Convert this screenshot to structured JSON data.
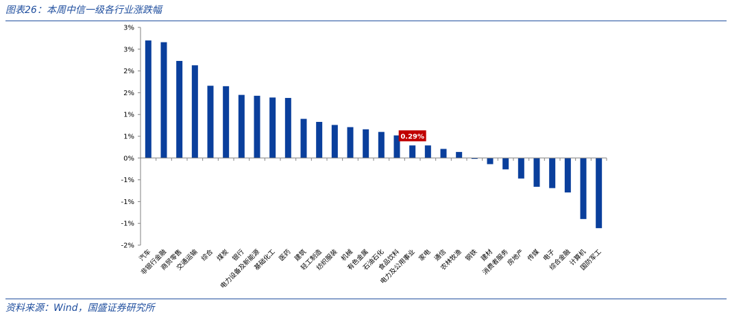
{
  "header": {
    "title": "图表26：本周中信一级各行业涨跌幅"
  },
  "footer": {
    "source": "资料来源：Wind，国盛证券研究所"
  },
  "colors": {
    "bar": "#0a3f9c",
    "accent_text": "#1f4e9e",
    "label_bg": "#c00000"
  },
  "chart_data": {
    "type": "bar",
    "title": "",
    "xlabel": "",
    "ylabel": "",
    "ylim": [
      -2.0,
      3.0
    ],
    "ytick_values": [
      -2.0,
      -1.5,
      -1.0,
      -0.5,
      0.0,
      0.5,
      1.0,
      1.5,
      2.0,
      2.5,
      3.0
    ],
    "ytick_labels": [
      "-2%",
      "-1%",
      "-1%",
      "-1%",
      "0%",
      "1%",
      "1%",
      "2%",
      "2%",
      "3%",
      "3%"
    ],
    "categories": [
      "汽车",
      "非银行金融",
      "商贸零售",
      "交通运输",
      "综合",
      "煤炭",
      "银行",
      "电力设备及新能源",
      "基础化工",
      "医药",
      "建筑",
      "轻工制造",
      "纺织服装",
      "机械",
      "有色金属",
      "石油石化",
      "食品饮料",
      "电力及公用事业",
      "家电",
      "通信",
      "农林牧渔",
      "钢铁",
      "建材",
      "消费者服务",
      "房地产",
      "传媒",
      "电子",
      "综合金融",
      "计算机",
      "国防军工"
    ],
    "values": [
      2.7,
      2.66,
      2.23,
      2.13,
      1.66,
      1.65,
      1.45,
      1.43,
      1.39,
      1.38,
      0.9,
      0.83,
      0.76,
      0.71,
      0.66,
      0.6,
      0.52,
      0.29,
      0.29,
      0.21,
      0.14,
      -0.02,
      -0.14,
      -0.26,
      -0.47,
      -0.66,
      -0.69,
      -0.79,
      -1.4,
      -1.61
    ],
    "data_label": {
      "category": "电力及公用事业",
      "text": "0.29%"
    },
    "grid": false,
    "legend": "none"
  }
}
